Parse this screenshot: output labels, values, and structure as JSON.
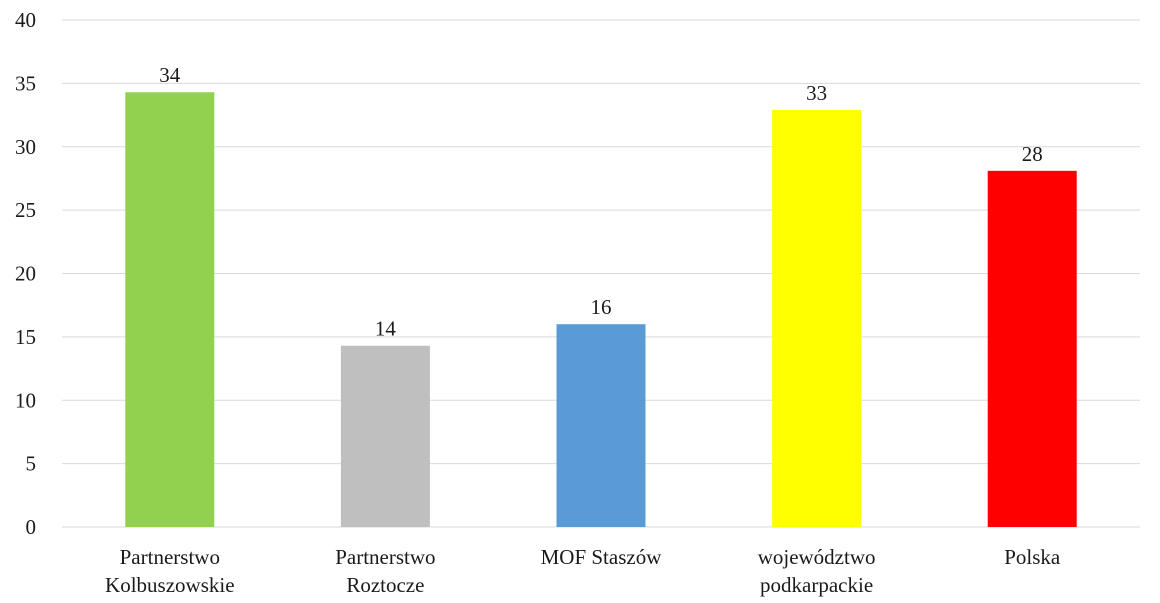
{
  "chart_data": {
    "type": "bar",
    "title": "",
    "xlabel": "",
    "ylabel": "",
    "ylim": [
      0,
      40
    ],
    "yticks": [
      0,
      5,
      10,
      15,
      20,
      25,
      30,
      35,
      40
    ],
    "grid": true,
    "legend": "none",
    "categories": [
      [
        "Partnerstwo",
        "Kolbuszowskie"
      ],
      [
        "Partnerstwo",
        "Roztocze"
      ],
      [
        "MOF Staszów"
      ],
      [
        "województwo",
        "podkarpackie"
      ],
      [
        "Polska"
      ]
    ],
    "values": [
      34.3,
      14.3,
      16.0,
      32.9,
      28.1
    ],
    "data_labels": [
      "34",
      "14",
      "16",
      "33",
      "28"
    ],
    "colors": [
      "#92d050",
      "#bfbfbf",
      "#5b9bd5",
      "#ffff00",
      "#ff0000"
    ]
  }
}
